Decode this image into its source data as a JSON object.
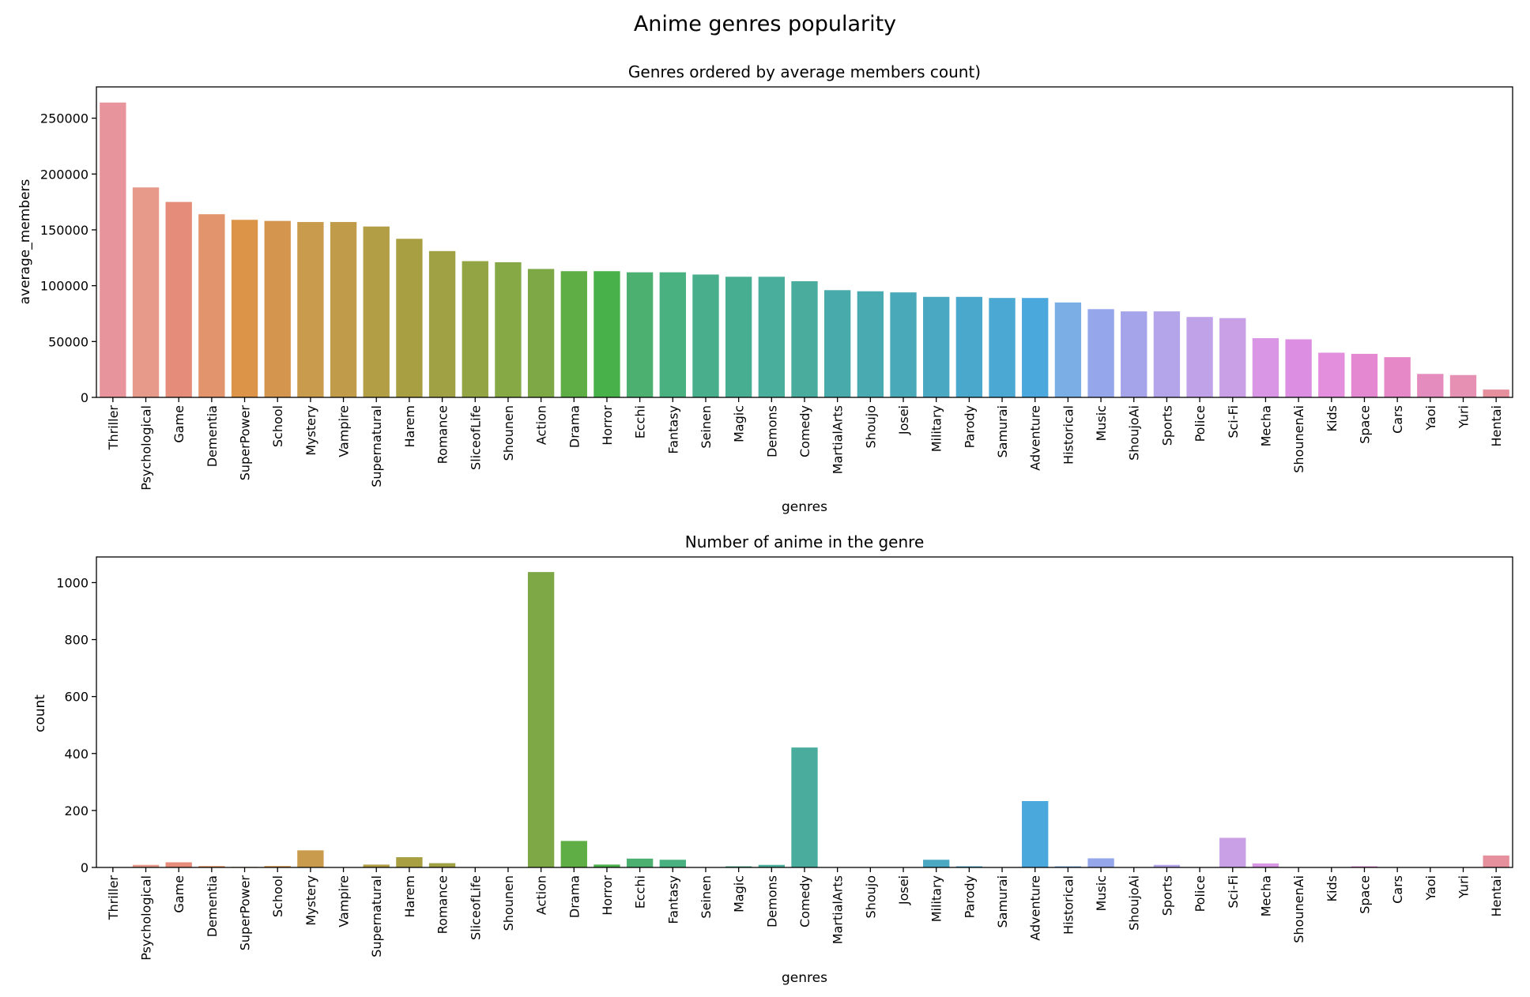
{
  "figure": {
    "title": "Anime genres popularity"
  },
  "chart_data": [
    {
      "type": "bar",
      "title": "Genres ordered by average members count)",
      "xlabel": "genres",
      "ylabel": "average_members",
      "ylim": [
        0,
        278000
      ],
      "yticks": [
        0,
        50000,
        100000,
        150000,
        200000,
        250000
      ],
      "grid": false,
      "categories": [
        "Thriller",
        "Psychological",
        "Game",
        "Dementia",
        "SuperPower",
        "School",
        "Mystery",
        "Vampire",
        "Supernatural",
        "Harem",
        "Romance",
        "SliceofLife",
        "Shounen",
        "Action",
        "Drama",
        "Horror",
        "Ecchi",
        "Fantasy",
        "Seinen",
        "Magic",
        "Demons",
        "Comedy",
        "MartialArts",
        "Shoujo",
        "Josei",
        "Military",
        "Parody",
        "Samurai",
        "Adventure",
        "Historical",
        "Music",
        "ShoujoAi",
        "Sports",
        "Police",
        "Sci-Fi",
        "Mecha",
        "ShounenAi",
        "Kids",
        "Space",
        "Cars",
        "Yaoi",
        "Yuri",
        "Hentai"
      ],
      "values": [
        264000,
        188000,
        175000,
        164000,
        159000,
        158000,
        157000,
        157000,
        153000,
        142000,
        131000,
        122000,
        121000,
        115000,
        113000,
        113000,
        112000,
        112000,
        110000,
        108000,
        108000,
        104000,
        96000,
        95000,
        94000,
        90000,
        90000,
        89000,
        89000,
        85000,
        79000,
        77000,
        77000,
        72000,
        71000,
        53000,
        52000,
        40000,
        39000,
        36000,
        21000,
        20000,
        7000
      ]
    },
    {
      "type": "bar",
      "title": "Number of anime in the genre",
      "xlabel": "genres",
      "ylabel": "count",
      "ylim": [
        0,
        1090
      ],
      "yticks": [
        0,
        200,
        400,
        600,
        800,
        1000
      ],
      "grid": false,
      "categories": [
        "Thriller",
        "Psychological",
        "Game",
        "Dementia",
        "SuperPower",
        "School",
        "Mystery",
        "Vampire",
        "Supernatural",
        "Harem",
        "Romance",
        "SliceofLife",
        "Shounen",
        "Action",
        "Drama",
        "Horror",
        "Ecchi",
        "Fantasy",
        "Seinen",
        "Magic",
        "Demons",
        "Comedy",
        "MartialArts",
        "Shoujo",
        "Josei",
        "Military",
        "Parody",
        "Samurai",
        "Adventure",
        "Historical",
        "Music",
        "ShoujoAi",
        "Sports",
        "Police",
        "Sci-Fi",
        "Mecha",
        "ShounenAi",
        "Kids",
        "Space",
        "Cars",
        "Yaoi",
        "Yuri",
        "Hentai"
      ],
      "values": [
        1,
        9,
        18,
        5,
        2,
        5,
        60,
        1,
        10,
        36,
        15,
        1,
        1,
        1037,
        93,
        10,
        31,
        27,
        1,
        4,
        9,
        421,
        1,
        1,
        1,
        27,
        4,
        1,
        233,
        4,
        32,
        1,
        9,
        1,
        104,
        14,
        1,
        1,
        4,
        1,
        1,
        1,
        42
      ]
    }
  ],
  "colors": [
    "#e8949c",
    "#e89a8a",
    "#e58c7a",
    "#e2956c",
    "#dc9548",
    "#d4964e",
    "#c99b4c",
    "#c09c4a",
    "#b19e45",
    "#a89f42",
    "#a0a045",
    "#93a444",
    "#86a845",
    "#7ea846",
    "#5eae45",
    "#48b14a",
    "#4bb070",
    "#49b080",
    "#48ae8c",
    "#48ae92",
    "#4aae9c",
    "#49ac9c",
    "#48aaaa",
    "#4aaab2",
    "#49a9b8",
    "#4aa8c2",
    "#4aa8cc",
    "#4aa8d2",
    "#4ba8dc",
    "#7aaee4",
    "#95a6ea",
    "#a5a4ea",
    "#b4a4ea",
    "#c0a2e8",
    "#c9a0e6",
    "#d896e4",
    "#dc8ee2",
    "#e48ede",
    "#e488d2",
    "#e688c8",
    "#e48cbe",
    "#e690b4",
    "#e6909e"
  ]
}
